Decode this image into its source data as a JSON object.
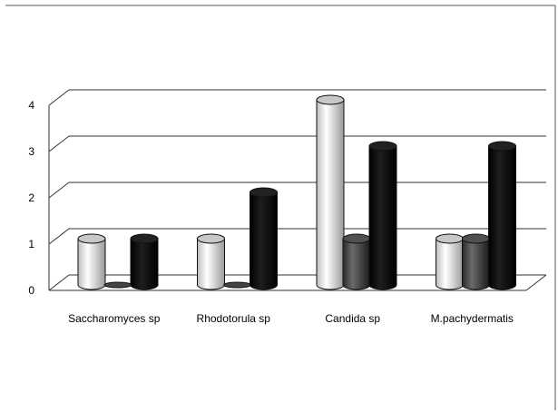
{
  "chart_data": {
    "type": "bar",
    "title": "",
    "xlabel": "",
    "ylabel": "",
    "categories": [
      "Saccharomyces sp",
      "Rhodotorula sp",
      "Candida sp",
      "M.pachydermatis"
    ],
    "series": [
      {
        "values": [
          1,
          1,
          4,
          1
        ],
        "color": "#f2f2f2"
      },
      {
        "values": [
          0,
          0,
          1,
          1
        ],
        "color": "#3a3a3a"
      },
      {
        "values": [
          1,
          2,
          3,
          3
        ],
        "color": "#000000"
      }
    ],
    "yticks": [
      "0",
      "1",
      "2",
      "3",
      "4"
    ],
    "ylim": [
      0,
      4
    ],
    "grid": true,
    "legend": "none",
    "style": "3d-cylinder"
  }
}
